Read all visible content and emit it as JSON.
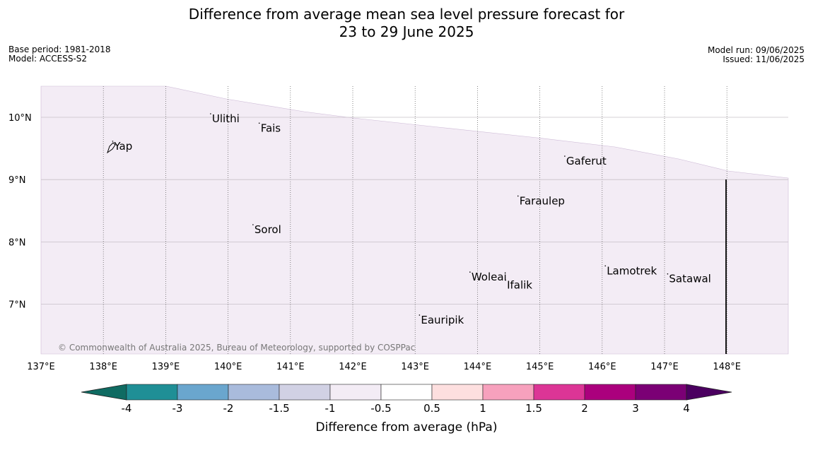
{
  "title_line1": "Difference from average mean sea level pressure forecast for",
  "title_line2": "23 to 29 June 2025",
  "base_period": "Base period: 1981-2018",
  "model": "Model: ACCESS-S2",
  "model_run": "Model run: 09/06/2025",
  "issued": "Issued: 11/06/2025",
  "copyright": "© Commonwealth of Australia 2025, Bureau of Meteorology, supported by COSPPac",
  "map": {
    "lon_range": [
      137,
      149
    ],
    "lat_range": [
      6.2,
      10.5
    ],
    "lon_ticks": [
      "137°E",
      "138°E",
      "139°E",
      "140°E",
      "141°E",
      "142°E",
      "143°E",
      "144°E",
      "145°E",
      "146°E",
      "147°E",
      "148°E"
    ],
    "lat_ticks": [
      "10°N",
      "9°N",
      "8°N",
      "7°N"
    ],
    "places": [
      {
        "name": "Yap",
        "lon": 138.15,
        "lat": 9.48
      },
      {
        "name": "Ulithi",
        "lon": 139.72,
        "lat": 9.92
      },
      {
        "name": "Fais",
        "lon": 140.5,
        "lat": 9.77
      },
      {
        "name": "Gaferut",
        "lon": 145.4,
        "lat": 9.24
      },
      {
        "name": "Faraulep",
        "lon": 144.65,
        "lat": 8.6
      },
      {
        "name": "Sorol",
        "lon": 140.4,
        "lat": 8.14
      },
      {
        "name": "Woleai",
        "lon": 143.88,
        "lat": 7.38
      },
      {
        "name": "Ifalik",
        "lon": 144.45,
        "lat": 7.25
      },
      {
        "name": "Lamotrek",
        "lon": 146.05,
        "lat": 7.48
      },
      {
        "name": "Satawal",
        "lon": 147.05,
        "lat": 7.35
      },
      {
        "name": "Eauripik",
        "lon": 143.07,
        "lat": 6.69
      }
    ],
    "shading_category": "-1 to -0.5",
    "shading_color": "#f3ecf5"
  },
  "colorbar": {
    "label": "Difference from average (hPa)",
    "ticks": [
      "-4",
      "-3",
      "-2",
      "-1.5",
      "-1",
      "-0.5",
      "0.5",
      "1",
      "1.5",
      "2",
      "3",
      "4"
    ],
    "colors": [
      "#0f6b62",
      "#1f8f96",
      "#6aa6ce",
      "#a9bbdc",
      "#d1d1e4",
      "#f3ecf5",
      "#ffffff",
      "#fddfdf",
      "#f7a1bd",
      "#dc3596",
      "#ab007d",
      "#7b0075",
      "#4b0060"
    ]
  }
}
